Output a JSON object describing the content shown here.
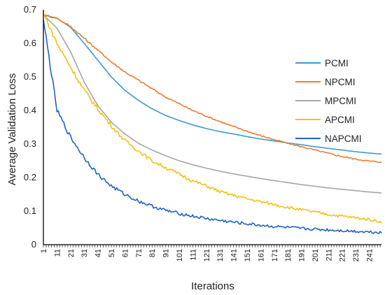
{
  "chart_data": {
    "type": "line",
    "xlabel": "Iterations",
    "ylabel": "Average Validation Loss",
    "xlim": [
      1,
      250
    ],
    "ylim": [
      0,
      0.7
    ],
    "yticks": [
      0,
      0.1,
      0.2,
      0.3,
      0.4,
      0.5,
      0.6,
      0.7
    ],
    "xticks": [
      1,
      11,
      21,
      31,
      41,
      51,
      61,
      71,
      81,
      91,
      101,
      111,
      121,
      131,
      141,
      151,
      161,
      171,
      181,
      191,
      201,
      211,
      221,
      231,
      241
    ],
    "grid": false,
    "legend_position": "right",
    "series": [
      {
        "name": "PCMI",
        "color": "#3a9bd1",
        "x": [
          1,
          11,
          21,
          31,
          41,
          51,
          61,
          71,
          81,
          91,
          101,
          111,
          121,
          131,
          141,
          151,
          161,
          171,
          181,
          191,
          201,
          211,
          221,
          231,
          241,
          250
        ],
        "y": [
          0.685,
          0.675,
          0.648,
          0.6,
          0.55,
          0.5,
          0.46,
          0.43,
          0.405,
          0.385,
          0.37,
          0.357,
          0.346,
          0.337,
          0.33,
          0.322,
          0.315,
          0.309,
          0.303,
          0.298,
          0.292,
          0.287,
          0.282,
          0.277,
          0.273,
          0.27
        ]
      },
      {
        "name": "NPCMI",
        "color": "#ef7c2f",
        "x": [
          1,
          11,
          21,
          31,
          41,
          51,
          61,
          71,
          81,
          91,
          101,
          111,
          121,
          131,
          141,
          151,
          161,
          171,
          181,
          191,
          201,
          211,
          221,
          231,
          241,
          250
        ],
        "y": [
          0.685,
          0.675,
          0.65,
          0.615,
          0.58,
          0.545,
          0.515,
          0.49,
          0.465,
          0.44,
          0.42,
          0.4,
          0.383,
          0.367,
          0.352,
          0.338,
          0.325,
          0.313,
          0.302,
          0.292,
          0.282,
          0.272,
          0.263,
          0.255,
          0.249,
          0.246
        ]
      },
      {
        "name": "MPCMI",
        "color": "#a5a5a5",
        "x": [
          1,
          11,
          21,
          31,
          41,
          51,
          61,
          71,
          81,
          91,
          101,
          111,
          121,
          131,
          141,
          151,
          161,
          171,
          181,
          191,
          201,
          211,
          221,
          231,
          241,
          250
        ],
        "y": [
          0.685,
          0.645,
          0.575,
          0.485,
          0.415,
          0.365,
          0.33,
          0.302,
          0.282,
          0.265,
          0.25,
          0.238,
          0.228,
          0.219,
          0.211,
          0.204,
          0.197,
          0.191,
          0.185,
          0.179,
          0.174,
          0.169,
          0.165,
          0.161,
          0.157,
          0.154
        ]
      },
      {
        "name": "APCMI",
        "color": "#f4c20d",
        "x": [
          1,
          11,
          21,
          31,
          41,
          51,
          61,
          71,
          81,
          91,
          101,
          111,
          121,
          131,
          141,
          151,
          161,
          171,
          181,
          191,
          201,
          211,
          221,
          231,
          241,
          250
        ],
        "y": [
          0.69,
          0.6,
          0.53,
          0.46,
          0.405,
          0.355,
          0.31,
          0.28,
          0.25,
          0.23,
          0.21,
          0.19,
          0.175,
          0.158,
          0.147,
          0.137,
          0.128,
          0.12,
          0.111,
          0.104,
          0.097,
          0.09,
          0.085,
          0.08,
          0.075,
          0.068
        ]
      },
      {
        "name": "NAPCMI",
        "color": "#1f63c4",
        "x": [
          1,
          11,
          21,
          31,
          41,
          51,
          61,
          71,
          81,
          91,
          101,
          111,
          121,
          131,
          141,
          151,
          161,
          171,
          181,
          191,
          201,
          211,
          221,
          231,
          241,
          250
        ],
        "y": [
          0.67,
          0.4,
          0.32,
          0.26,
          0.21,
          0.175,
          0.15,
          0.13,
          0.115,
          0.102,
          0.093,
          0.085,
          0.078,
          0.072,
          0.067,
          0.062,
          0.058,
          0.054,
          0.051,
          0.048,
          0.046,
          0.044,
          0.042,
          0.04,
          0.038,
          0.037
        ]
      }
    ]
  }
}
